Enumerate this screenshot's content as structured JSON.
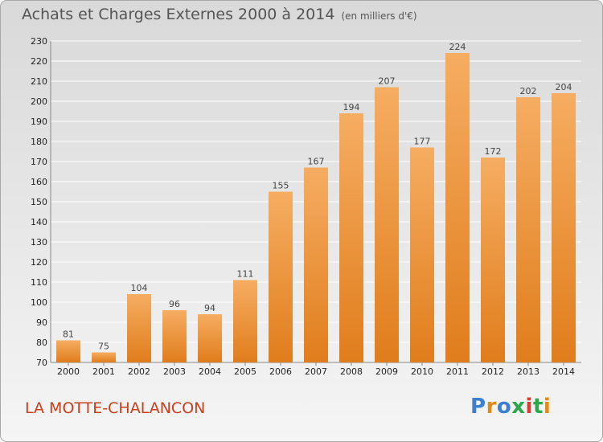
{
  "title": "Achats et Charges Externes 2000 à 2014",
  "unit": "(en milliers d'€)",
  "commune": "LA MOTTE-CHALANCON",
  "logo": {
    "letters": [
      "P",
      "r",
      "o",
      "x",
      "i",
      "t",
      "i"
    ],
    "colors": [
      "#3a7fd0",
      "#e08a1a",
      "#3a7fd0",
      "#2aa84a",
      "#e03a2a",
      "#2aa84a",
      "#e08a1a"
    ]
  },
  "colors": {
    "bar_top": "#f6ad62",
    "bar_bottom": "#e07d1c",
    "grid": "#ffffff"
  },
  "chart_data": {
    "type": "bar",
    "categories": [
      "2000",
      "2001",
      "2002",
      "2003",
      "2004",
      "2005",
      "2006",
      "2007",
      "2008",
      "2009",
      "2010",
      "2011",
      "2012",
      "2013",
      "2014"
    ],
    "values": [
      81,
      75,
      104,
      96,
      94,
      111,
      155,
      167,
      194,
      207,
      177,
      224,
      172,
      202,
      204
    ],
    "ylim": [
      70,
      230
    ],
    "yticks": [
      70,
      80,
      90,
      100,
      110,
      120,
      130,
      140,
      150,
      160,
      170,
      180,
      190,
      200,
      210,
      220,
      230
    ],
    "grid": true,
    "title": "Achats et Charges Externes 2000 à 2014",
    "xlabel": "",
    "ylabel": ""
  }
}
